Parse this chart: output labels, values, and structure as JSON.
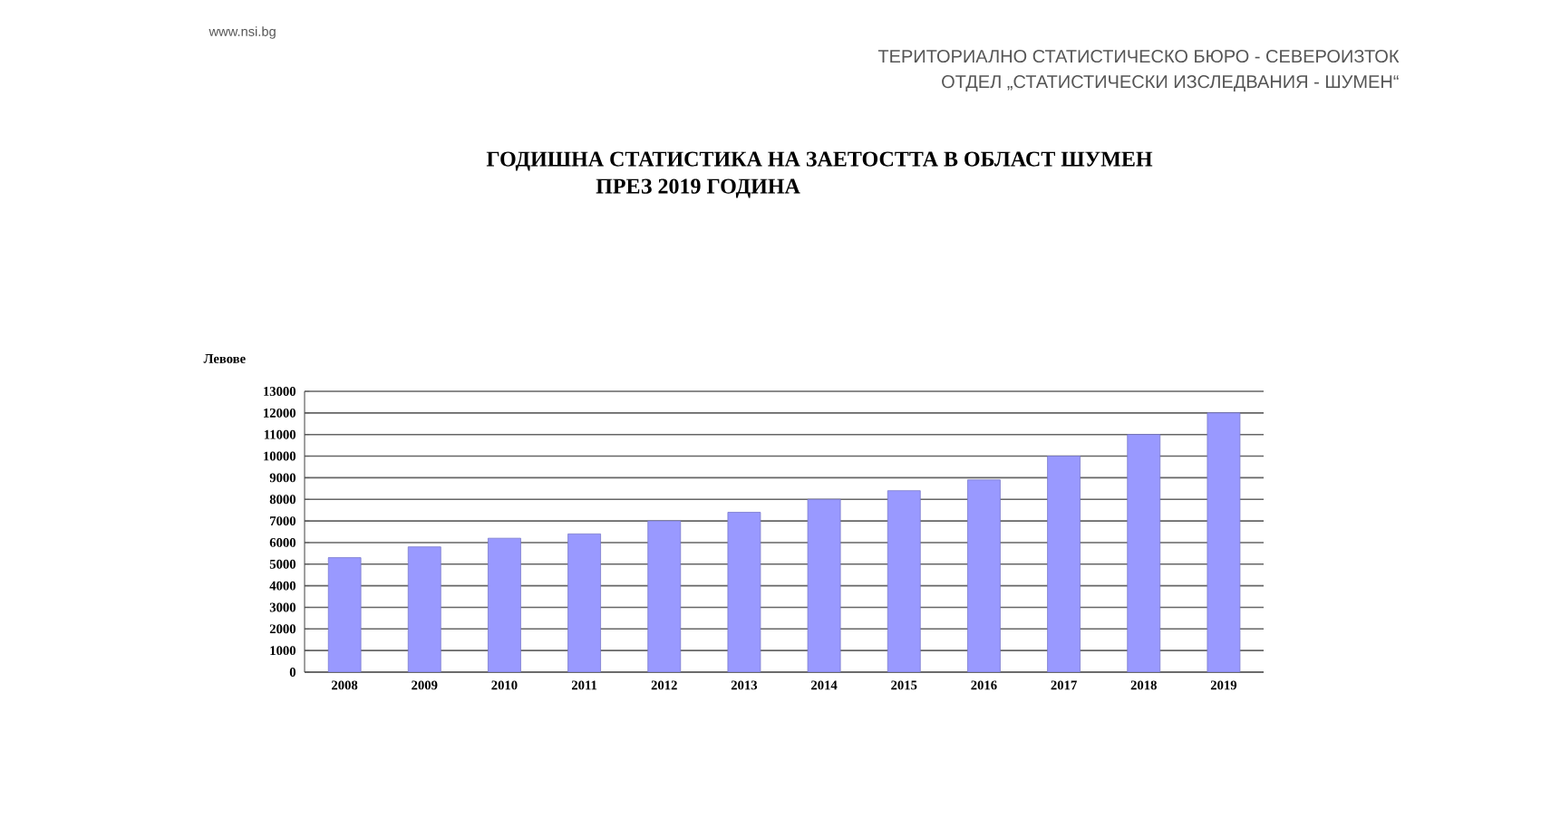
{
  "chart_data": {
    "type": "bar",
    "title": "ГОДИШНА СТАТИСТИКА НА ЗАЕТОСТТА В ОБЛАСТ ШУМЕН",
    "subtitle": "ПРЕЗ 2019 ГОДИНА",
    "annotations": [
      "www.nsi.bg",
      "ТЕРИТОРИАЛНО СТАТИСТИЧЕСКО БЮРО - СЕВЕРОИЗТОК",
      "ОТДЕЛ „СТАТИСТИЧЕСКИ ИЗСЛЕДВАНИЯ - ШУМЕН“"
    ],
    "ylabel": "Левове",
    "categories": [
      "2008",
      "2009",
      "2010",
      "2011",
      "2012",
      "2013",
      "2014",
      "2015",
      "2016",
      "2017",
      "2018",
      "2019"
    ],
    "values": [
      5300,
      5800,
      6200,
      6400,
      7000,
      7400,
      8000,
      8400,
      8900,
      10000,
      11000,
      12000
    ],
    "color": "#9999ff",
    "ylim": [
      0,
      13000
    ],
    "yticks": [
      0,
      1000,
      2000,
      3000,
      4000,
      5000,
      6000,
      7000,
      8000,
      9000,
      10000,
      11000,
      12000,
      13000
    ],
    "grid": "y"
  }
}
